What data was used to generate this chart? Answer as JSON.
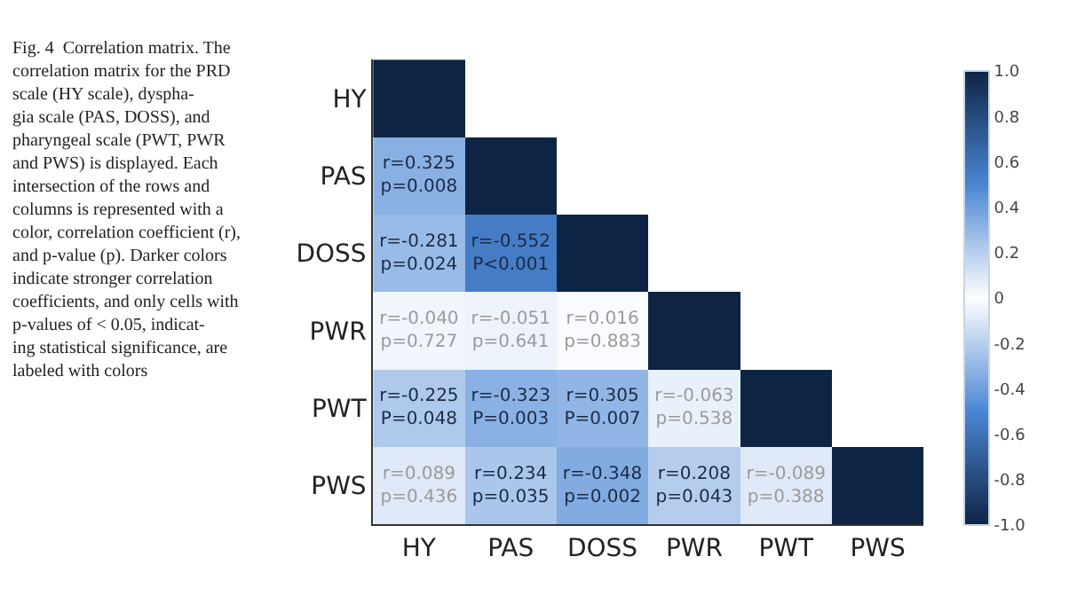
{
  "chart_data": {
    "type": "heatmap",
    "categories": [
      "HY",
      "PAS",
      "DOSS",
      "PWR",
      "PWT",
      "PWS"
    ],
    "y_categories": [
      "HY",
      "PAS",
      "DOSS",
      "PWR",
      "PWT",
      "PWS"
    ],
    "cells": [
      [
        1.0,
        null,
        null,
        null,
        null,
        null
      ],
      [
        0.325,
        1.0,
        null,
        null,
        null,
        null
      ],
      [
        -0.281,
        -0.552,
        1.0,
        null,
        null,
        null
      ],
      [
        -0.04,
        -0.051,
        0.016,
        1.0,
        null,
        null
      ],
      [
        -0.225,
        -0.323,
        0.305,
        -0.063,
        1.0,
        null
      ],
      [
        0.089,
        0.234,
        -0.348,
        0.208,
        -0.089,
        1.0
      ]
    ],
    "cell_labels": [
      [
        null,
        null,
        null,
        null,
        null,
        null
      ],
      [
        "r=0.325\np=0.008",
        null,
        null,
        null,
        null,
        null
      ],
      [
        "r=-0.281\np=0.024",
        "r=-0.552\nP<0.001",
        null,
        null,
        null,
        null
      ],
      [
        "r=-0.040\np=0.727",
        "r=-0.051\np=0.641",
        "r=0.016\np=0.883",
        null,
        null,
        null
      ],
      [
        "r=-0.225\nP=0.048",
        "r=-0.323\nP=0.003",
        "r=0.305\nP=0.007",
        "r=-0.063\np=0.538",
        null,
        null
      ],
      [
        "r=0.089\np=0.436",
        "r=0.234\np=0.035",
        "r=-0.348\np=0.002",
        "r=0.208\np=0.043",
        "r=-0.089\np=0.388",
        null
      ]
    ],
    "clim": [
      -1.0,
      1.0
    ],
    "cticks": [
      {
        "value": 1.0,
        "label": "1.0"
      },
      0.8,
      0.6,
      0.4,
      0.2,
      0,
      -0.2,
      -0.4,
      -0.6,
      -0.8,
      {
        "value": -1.0,
        "label": "-1.0"
      }
    ],
    "annotations": [
      "Fig. 4  Correlation matrix. The\ncorrelation matrix for the PRD\nscale (HY scale), dyspha-\ngia scale (PAS, DOSS), and\npharyngeal scale (PWT, PWR\nand PWS) is displayed. Each\nintersection of the rows and\ncolumns is represented with a\ncolor, correlation coefficient (r),\nand p-value (p). Darker colors\nindicate stronger correlation\ncoefficients, and only cells with\np-values of < 0.05, indicat-\ning statistical significance, are\nlabeled with colors"
    ]
  }
}
